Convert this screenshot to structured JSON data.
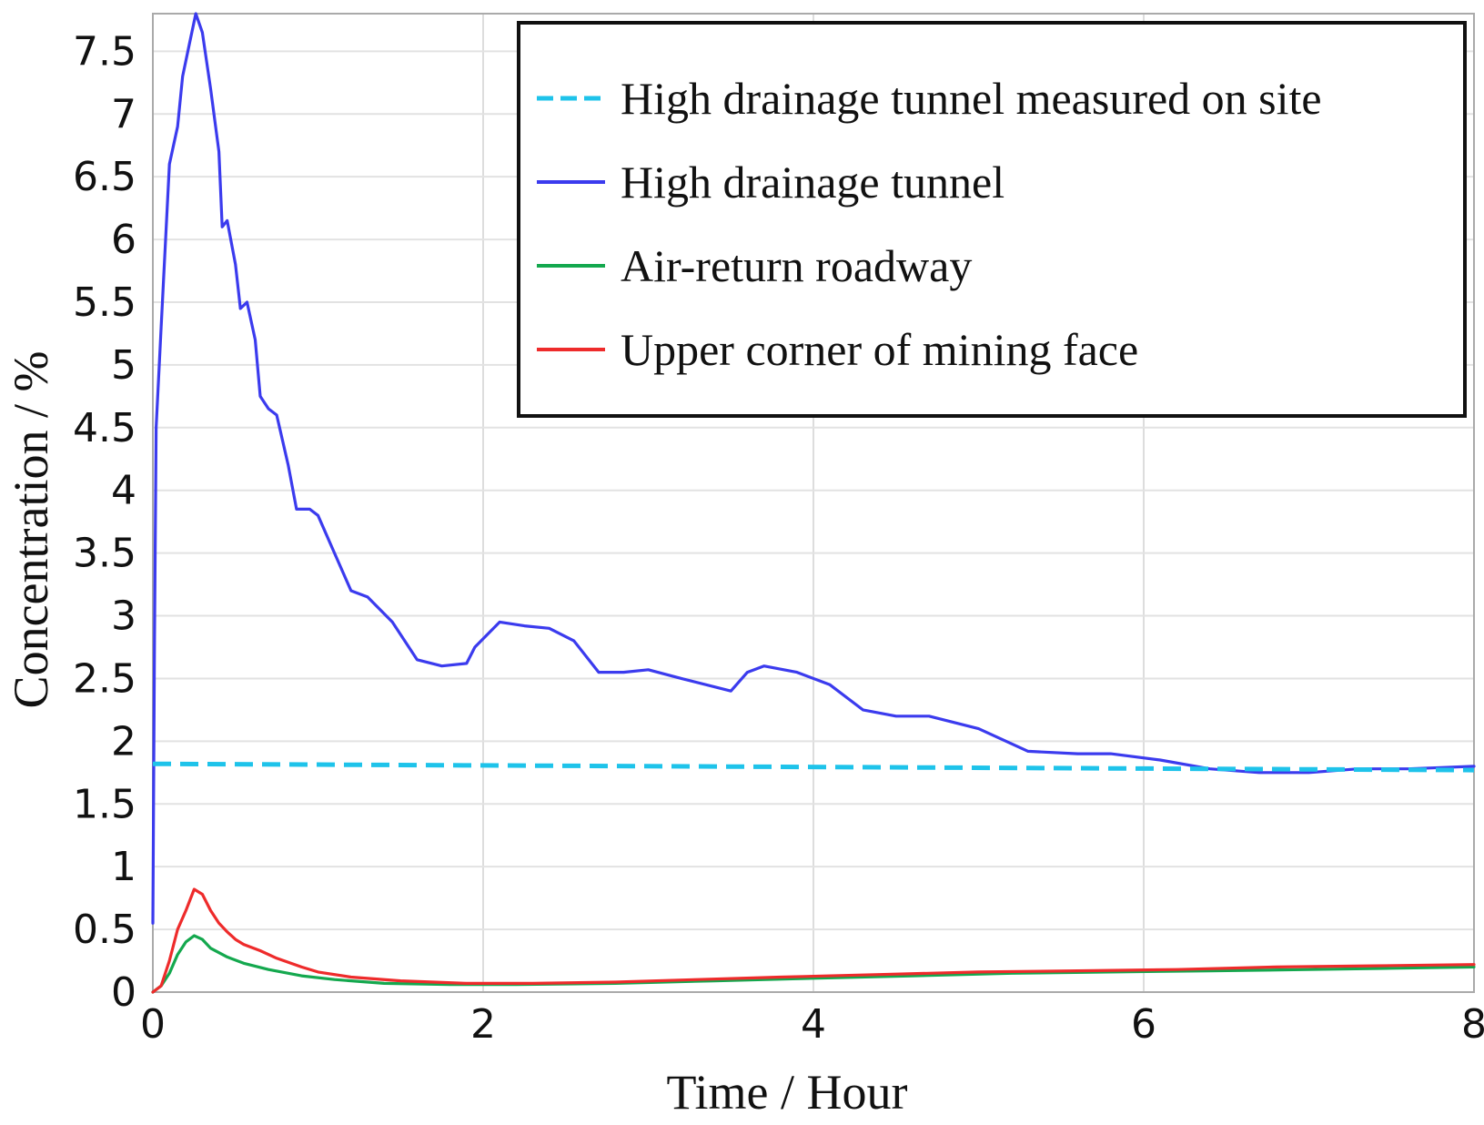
{
  "chart_data": {
    "type": "line",
    "title": "",
    "xlabel": "Time / Hour",
    "ylabel": "Concentration / %",
    "xlim": [
      0,
      8
    ],
    "ylim": [
      0,
      7.8
    ],
    "grid": true,
    "legend_position": "top-right",
    "x_ticks": [
      "0",
      "2",
      "4",
      "6",
      "8"
    ],
    "y_ticks": [
      "0",
      "0.5",
      "1",
      "1.5",
      "2",
      "2.5",
      "3",
      "3.5",
      "4",
      "4.5",
      "5",
      "5.5",
      "6",
      "6.5",
      "7",
      "7.5"
    ],
    "series": [
      {
        "name": "High drainage tunnel measured on site",
        "color": "#1ec3ea",
        "dash": true,
        "points": [
          [
            0,
            1.82
          ],
          [
            8,
            1.77
          ]
        ]
      },
      {
        "name": "High drainage tunnel",
        "color": "#3b3bee",
        "dash": false,
        "points": [
          [
            0,
            0.55
          ],
          [
            0.01,
            2.8
          ],
          [
            0.02,
            4.5
          ],
          [
            0.05,
            5.3
          ],
          [
            0.1,
            6.6
          ],
          [
            0.15,
            6.9
          ],
          [
            0.18,
            7.3
          ],
          [
            0.22,
            7.55
          ],
          [
            0.26,
            7.8
          ],
          [
            0.3,
            7.65
          ],
          [
            0.35,
            7.2
          ],
          [
            0.4,
            6.7
          ],
          [
            0.42,
            6.1
          ],
          [
            0.45,
            6.15
          ],
          [
            0.5,
            5.8
          ],
          [
            0.53,
            5.45
          ],
          [
            0.57,
            5.5
          ],
          [
            0.62,
            5.2
          ],
          [
            0.65,
            4.75
          ],
          [
            0.7,
            4.65
          ],
          [
            0.75,
            4.6
          ],
          [
            0.82,
            4.2
          ],
          [
            0.87,
            3.85
          ],
          [
            0.95,
            3.85
          ],
          [
            1.0,
            3.8
          ],
          [
            1.1,
            3.5
          ],
          [
            1.2,
            3.2
          ],
          [
            1.3,
            3.15
          ],
          [
            1.45,
            2.95
          ],
          [
            1.6,
            2.65
          ],
          [
            1.75,
            2.6
          ],
          [
            1.9,
            2.62
          ],
          [
            1.95,
            2.75
          ],
          [
            2.1,
            2.95
          ],
          [
            2.25,
            2.92
          ],
          [
            2.4,
            2.9
          ],
          [
            2.55,
            2.8
          ],
          [
            2.7,
            2.55
          ],
          [
            2.85,
            2.55
          ],
          [
            3.0,
            2.57
          ],
          [
            3.2,
            2.5
          ],
          [
            3.5,
            2.4
          ],
          [
            3.6,
            2.55
          ],
          [
            3.7,
            2.6
          ],
          [
            3.9,
            2.55
          ],
          [
            4.1,
            2.45
          ],
          [
            4.3,
            2.25
          ],
          [
            4.5,
            2.2
          ],
          [
            4.7,
            2.2
          ],
          [
            5.0,
            2.1
          ],
          [
            5.3,
            1.92
          ],
          [
            5.6,
            1.9
          ],
          [
            5.8,
            1.9
          ],
          [
            6.1,
            1.85
          ],
          [
            6.4,
            1.78
          ],
          [
            6.7,
            1.75
          ],
          [
            7.0,
            1.75
          ],
          [
            7.3,
            1.78
          ],
          [
            7.6,
            1.78
          ],
          [
            7.8,
            1.79
          ],
          [
            8.0,
            1.8
          ]
        ]
      },
      {
        "name": "Air-return roadway",
        "color": "#14a84e",
        "dash": false,
        "points": [
          [
            0,
            0.0
          ],
          [
            0.05,
            0.05
          ],
          [
            0.1,
            0.15
          ],
          [
            0.15,
            0.3
          ],
          [
            0.2,
            0.4
          ],
          [
            0.25,
            0.45
          ],
          [
            0.3,
            0.42
          ],
          [
            0.35,
            0.35
          ],
          [
            0.45,
            0.28
          ],
          [
            0.55,
            0.23
          ],
          [
            0.7,
            0.18
          ],
          [
            0.9,
            0.13
          ],
          [
            1.1,
            0.1
          ],
          [
            1.4,
            0.07
          ],
          [
            1.8,
            0.06
          ],
          [
            2.2,
            0.06
          ],
          [
            2.8,
            0.07
          ],
          [
            3.4,
            0.09
          ],
          [
            4.0,
            0.11
          ],
          [
            4.6,
            0.13
          ],
          [
            5.2,
            0.15
          ],
          [
            5.8,
            0.16
          ],
          [
            6.4,
            0.17
          ],
          [
            7.0,
            0.18
          ],
          [
            7.5,
            0.19
          ],
          [
            8.0,
            0.2
          ]
        ]
      },
      {
        "name": "Upper corner of mining face",
        "color": "#ee2b2b",
        "dash": false,
        "points": [
          [
            0,
            0.0
          ],
          [
            0.05,
            0.05
          ],
          [
            0.1,
            0.25
          ],
          [
            0.15,
            0.5
          ],
          [
            0.2,
            0.65
          ],
          [
            0.25,
            0.82
          ],
          [
            0.3,
            0.78
          ],
          [
            0.35,
            0.65
          ],
          [
            0.4,
            0.55
          ],
          [
            0.45,
            0.48
          ],
          [
            0.5,
            0.42
          ],
          [
            0.55,
            0.38
          ],
          [
            0.65,
            0.33
          ],
          [
            0.75,
            0.27
          ],
          [
            0.9,
            0.2
          ],
          [
            1.0,
            0.16
          ],
          [
            1.2,
            0.12
          ],
          [
            1.5,
            0.09
          ],
          [
            1.9,
            0.07
          ],
          [
            2.3,
            0.07
          ],
          [
            2.8,
            0.08
          ],
          [
            3.3,
            0.1
          ],
          [
            3.8,
            0.12
          ],
          [
            4.4,
            0.14
          ],
          [
            5.0,
            0.16
          ],
          [
            5.6,
            0.17
          ],
          [
            6.2,
            0.18
          ],
          [
            6.8,
            0.2
          ],
          [
            7.4,
            0.21
          ],
          [
            8.0,
            0.22
          ]
        ]
      }
    ]
  }
}
